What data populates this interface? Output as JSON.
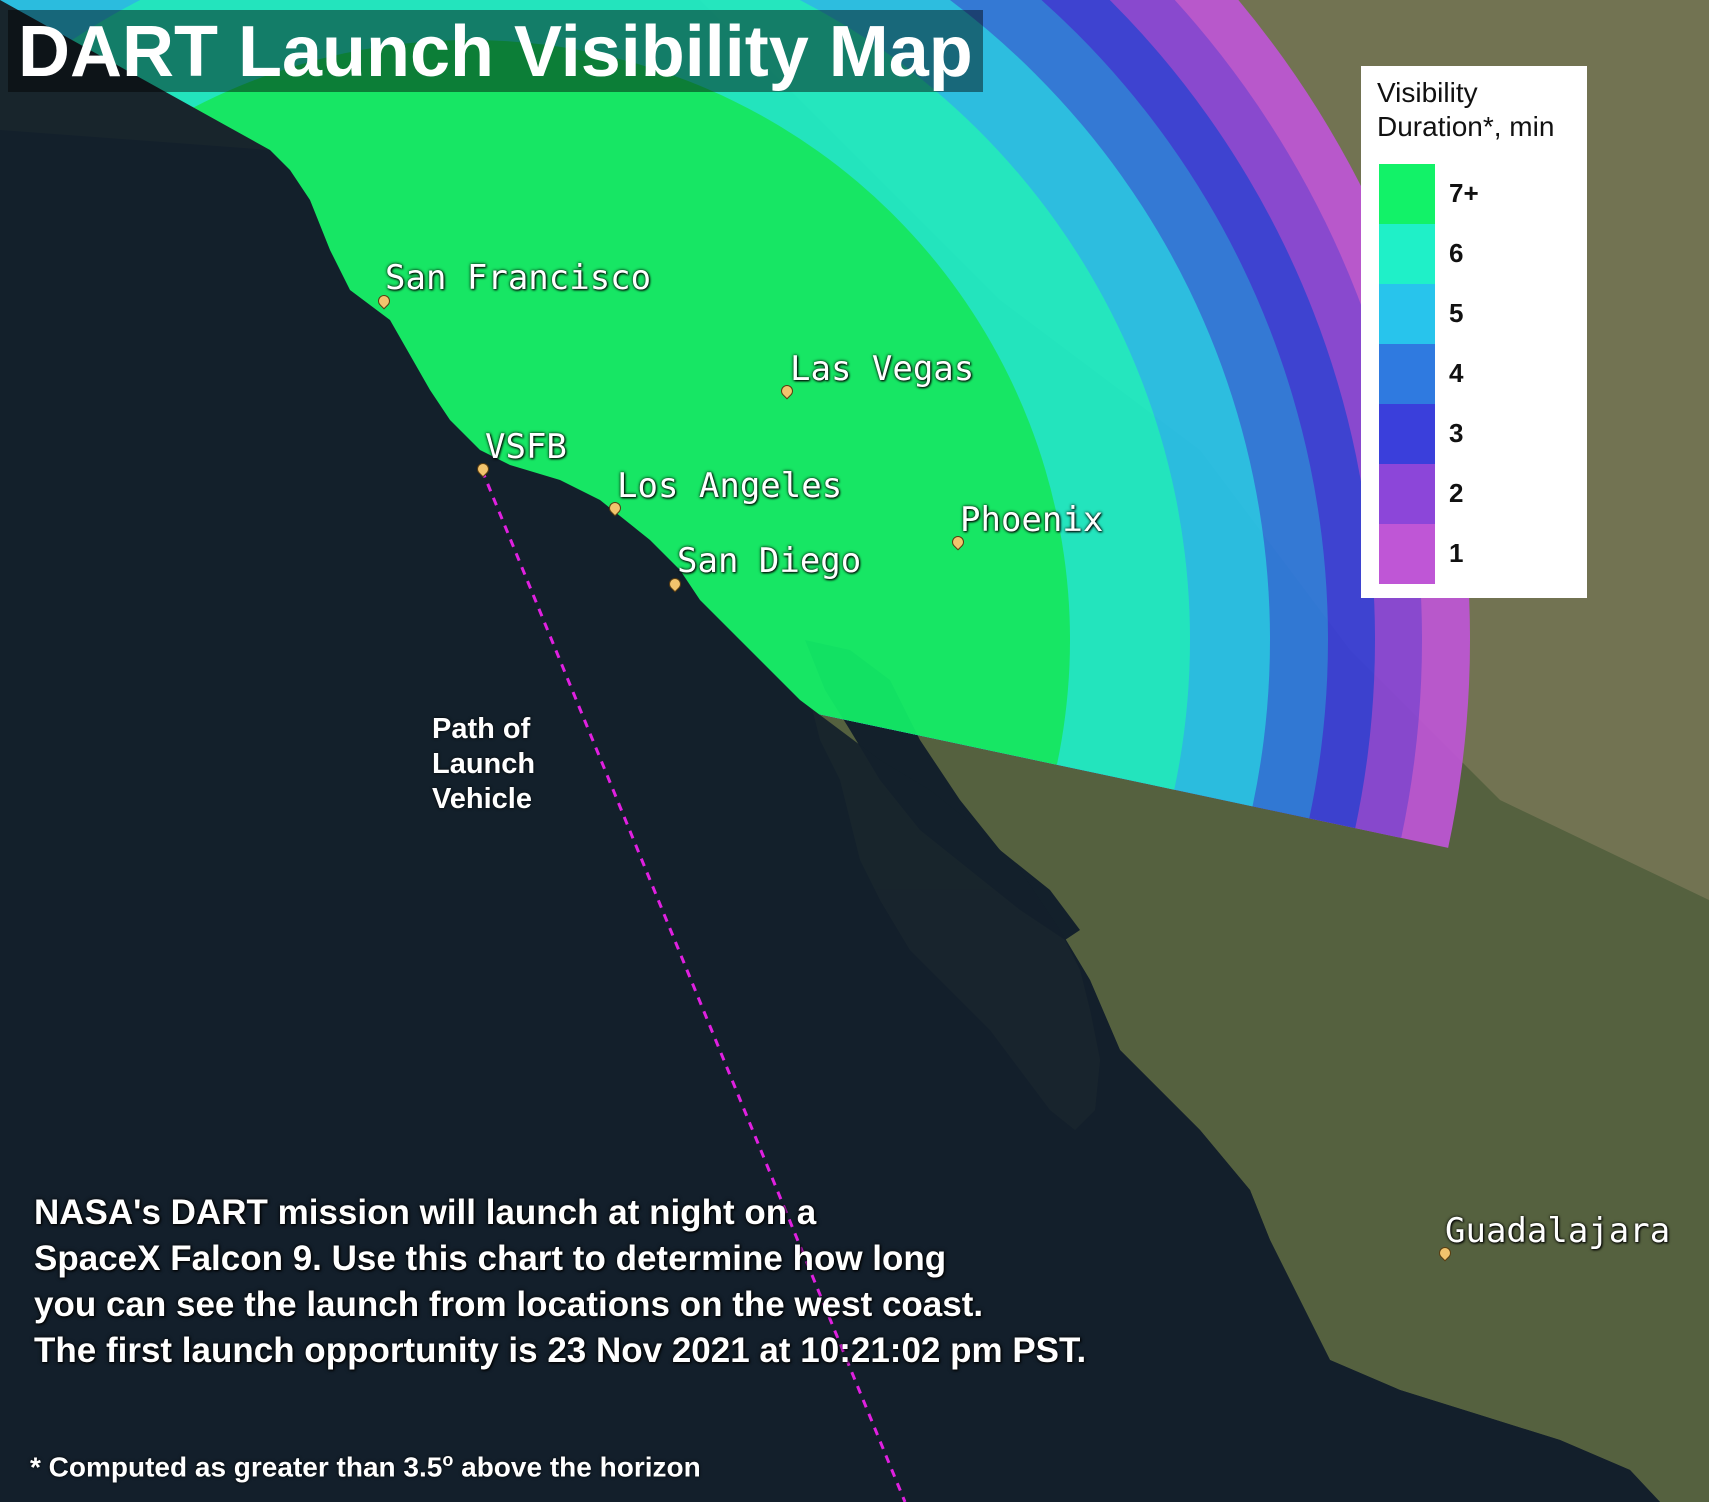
{
  "title": "DART Launch Visibility Map",
  "legend": {
    "title_line1": "Visibility",
    "title_line2": "Duration*, min",
    "items": [
      {
        "label": "7+",
        "color": "#12f268"
      },
      {
        "label": "6",
        "color": "#1ff0c8"
      },
      {
        "label": "5",
        "color": "#28c4ec"
      },
      {
        "label": "4",
        "color": "#2f7ae0"
      },
      {
        "label": "3",
        "color": "#3a3fdb"
      },
      {
        "label": "2",
        "color": "#8c46d9"
      },
      {
        "label": "1",
        "color": "#bf56d6"
      }
    ]
  },
  "cities": [
    {
      "name": "San Francisco"
    },
    {
      "name": "Las Vegas"
    },
    {
      "name": "VSFB"
    },
    {
      "name": "Los Angeles"
    },
    {
      "name": "Phoenix"
    },
    {
      "name": "San Diego"
    },
    {
      "name": "Guadalajara"
    }
  ],
  "path_label": {
    "line1": "Path of",
    "line2": "Launch",
    "line3": "Vehicle"
  },
  "caption": {
    "line1": "NASA's DART mission will launch at night on a",
    "line2": "SpaceX Falcon 9. Use this chart to determine how long",
    "line3": "you can see the launch from locations on the west coast.",
    "line4": "The first launch opportunity is 23 Nov 2021 at 10:21:02 pm PST."
  },
  "footnote": {
    "prefix": "* Computed as greater than 3.5",
    "superscript": "o",
    "suffix": " above the horizon"
  },
  "colors": {
    "ocean": "#13202b",
    "land": "#4e5a3e",
    "path_line": "#e020e0",
    "pin": "#f2c46d"
  }
}
